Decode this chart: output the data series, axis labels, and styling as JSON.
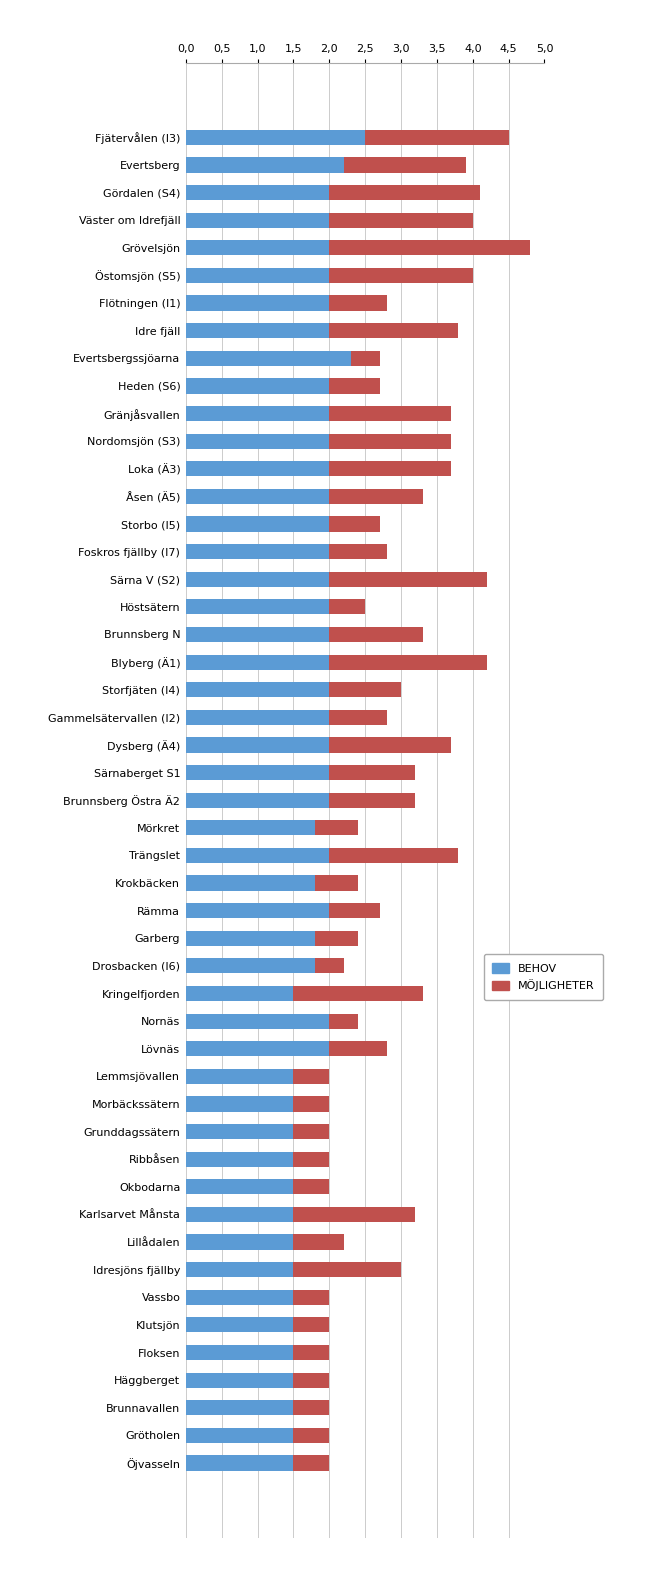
{
  "categories": [
    "Fjätervålen (I3)",
    "Evertsberg",
    "Gördalen (S4)",
    "Väster om Idrefjäll",
    "Grövelsjön",
    "Östomsjön (S5)",
    "Flötningen (I1)",
    "Idre fjäll",
    "Evertsbergssjöarna",
    "Heden (S6)",
    "Gränjåsvallen",
    "Nordomsjön (S3)",
    "Loka (Ä3)",
    "Åsen (Ä5)",
    "Storbo (I5)",
    "Foskros fjällby (I7)",
    "Särna V (S2)",
    "Höstsätern",
    "Brunnsberg N",
    "Blyberg (Ä1)",
    "Storfjäten (I4)",
    "Gammelsätervallen (I2)",
    "Dysberg (Ä4)",
    "Särnaberget S1",
    "Brunnsberg Östra Ä2",
    "Mörkret",
    "Trängslet",
    "Krokbäcken",
    "Rämma",
    "Garberg",
    "Drosbacken (I6)",
    "Kringelfjorden",
    "Nornäs",
    "Lövnäs",
    "Lemmsjövallen",
    "Morbäckssätern",
    "Grunddagssätern",
    "Ribbåsen",
    "Okbodarna",
    "Karlsarvet Månsta",
    "Lillådalen",
    "Idresjöns fjällby",
    "Vassbo",
    "Klutsjön",
    "Floksen",
    "Häggberget",
    "Brunnavallen",
    "Grötholen",
    "Öjvasseln"
  ],
  "behov": [
    2.5,
    2.2,
    2.0,
    2.0,
    2.0,
    2.0,
    2.0,
    2.0,
    2.3,
    2.0,
    2.0,
    2.0,
    2.0,
    2.0,
    2.0,
    2.0,
    2.0,
    2.0,
    2.0,
    2.0,
    2.0,
    2.0,
    2.0,
    2.0,
    2.0,
    1.8,
    2.0,
    1.8,
    2.0,
    1.8,
    1.8,
    1.5,
    2.0,
    2.0,
    1.5,
    1.5,
    1.5,
    1.5,
    1.5,
    1.5,
    1.5,
    1.5,
    1.5,
    1.5,
    1.5,
    1.5,
    1.5,
    1.5,
    1.5
  ],
  "mojligheter": [
    2.0,
    1.7,
    2.1,
    2.0,
    2.8,
    2.0,
    0.8,
    1.8,
    0.4,
    0.7,
    1.7,
    1.7,
    1.7,
    1.3,
    0.7,
    0.8,
    2.2,
    0.5,
    1.3,
    2.2,
    1.0,
    0.8,
    1.7,
    1.2,
    1.2,
    0.6,
    1.8,
    0.6,
    0.7,
    0.6,
    0.4,
    1.8,
    0.4,
    0.8,
    0.5,
    0.5,
    0.5,
    0.5,
    0.5,
    1.7,
    0.7,
    1.5,
    0.5,
    0.5,
    0.5,
    0.5,
    0.5,
    0.5,
    0.5
  ],
  "behov_color": "#5b9bd5",
  "mojligheter_color": "#c0504d",
  "xlim": [
    0,
    5.0
  ],
  "xticks": [
    0.0,
    0.5,
    1.0,
    1.5,
    2.0,
    2.5,
    3.0,
    3.5,
    4.0,
    4.5,
    5.0
  ],
  "xtick_labels": [
    "0,0",
    "0,5",
    "1,0",
    "1,5",
    "2,0",
    "2,5",
    "3,0",
    "3,5",
    "4,0",
    "4,5",
    "5,0"
  ],
  "legend_behov": "BEHOV",
  "legend_mojligheter": "MÖJLIGHETER",
  "background_color": "#ffffff",
  "bar_height": 0.55
}
